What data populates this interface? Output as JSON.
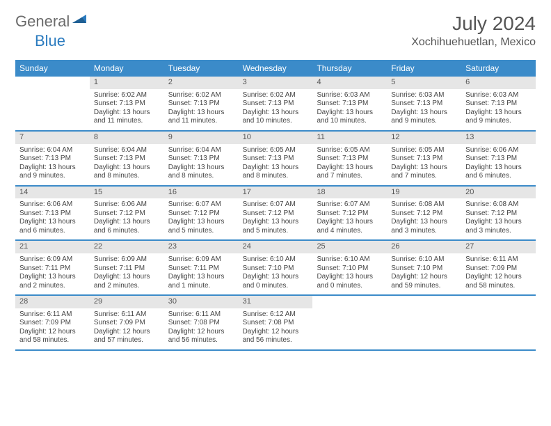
{
  "logo": {
    "general": "General",
    "blue": "Blue"
  },
  "title": "July 2024",
  "location": "Xochihuehuetlan, Mexico",
  "colors": {
    "header_bg": "#3b8bc9",
    "header_text": "#ffffff",
    "daynum_bg": "#e6e6e6",
    "border": "#3b8bc9",
    "text": "#444444",
    "logo_gray": "#6b6b6b",
    "logo_blue": "#2b7bbf"
  },
  "day_names": [
    "Sunday",
    "Monday",
    "Tuesday",
    "Wednesday",
    "Thursday",
    "Friday",
    "Saturday"
  ],
  "weeks": [
    [
      {
        "empty": true
      },
      {
        "num": "1",
        "sunrise": "Sunrise: 6:02 AM",
        "sunset": "Sunset: 7:13 PM",
        "dl1": "Daylight: 13 hours",
        "dl2": "and 11 minutes."
      },
      {
        "num": "2",
        "sunrise": "Sunrise: 6:02 AM",
        "sunset": "Sunset: 7:13 PM",
        "dl1": "Daylight: 13 hours",
        "dl2": "and 11 minutes."
      },
      {
        "num": "3",
        "sunrise": "Sunrise: 6:02 AM",
        "sunset": "Sunset: 7:13 PM",
        "dl1": "Daylight: 13 hours",
        "dl2": "and 10 minutes."
      },
      {
        "num": "4",
        "sunrise": "Sunrise: 6:03 AM",
        "sunset": "Sunset: 7:13 PM",
        "dl1": "Daylight: 13 hours",
        "dl2": "and 10 minutes."
      },
      {
        "num": "5",
        "sunrise": "Sunrise: 6:03 AM",
        "sunset": "Sunset: 7:13 PM",
        "dl1": "Daylight: 13 hours",
        "dl2": "and 9 minutes."
      },
      {
        "num": "6",
        "sunrise": "Sunrise: 6:03 AM",
        "sunset": "Sunset: 7:13 PM",
        "dl1": "Daylight: 13 hours",
        "dl2": "and 9 minutes."
      }
    ],
    [
      {
        "num": "7",
        "sunrise": "Sunrise: 6:04 AM",
        "sunset": "Sunset: 7:13 PM",
        "dl1": "Daylight: 13 hours",
        "dl2": "and 9 minutes."
      },
      {
        "num": "8",
        "sunrise": "Sunrise: 6:04 AM",
        "sunset": "Sunset: 7:13 PM",
        "dl1": "Daylight: 13 hours",
        "dl2": "and 8 minutes."
      },
      {
        "num": "9",
        "sunrise": "Sunrise: 6:04 AM",
        "sunset": "Sunset: 7:13 PM",
        "dl1": "Daylight: 13 hours",
        "dl2": "and 8 minutes."
      },
      {
        "num": "10",
        "sunrise": "Sunrise: 6:05 AM",
        "sunset": "Sunset: 7:13 PM",
        "dl1": "Daylight: 13 hours",
        "dl2": "and 8 minutes."
      },
      {
        "num": "11",
        "sunrise": "Sunrise: 6:05 AM",
        "sunset": "Sunset: 7:13 PM",
        "dl1": "Daylight: 13 hours",
        "dl2": "and 7 minutes."
      },
      {
        "num": "12",
        "sunrise": "Sunrise: 6:05 AM",
        "sunset": "Sunset: 7:13 PM",
        "dl1": "Daylight: 13 hours",
        "dl2": "and 7 minutes."
      },
      {
        "num": "13",
        "sunrise": "Sunrise: 6:06 AM",
        "sunset": "Sunset: 7:13 PM",
        "dl1": "Daylight: 13 hours",
        "dl2": "and 6 minutes."
      }
    ],
    [
      {
        "num": "14",
        "sunrise": "Sunrise: 6:06 AM",
        "sunset": "Sunset: 7:13 PM",
        "dl1": "Daylight: 13 hours",
        "dl2": "and 6 minutes."
      },
      {
        "num": "15",
        "sunrise": "Sunrise: 6:06 AM",
        "sunset": "Sunset: 7:12 PM",
        "dl1": "Daylight: 13 hours",
        "dl2": "and 6 minutes."
      },
      {
        "num": "16",
        "sunrise": "Sunrise: 6:07 AM",
        "sunset": "Sunset: 7:12 PM",
        "dl1": "Daylight: 13 hours",
        "dl2": "and 5 minutes."
      },
      {
        "num": "17",
        "sunrise": "Sunrise: 6:07 AM",
        "sunset": "Sunset: 7:12 PM",
        "dl1": "Daylight: 13 hours",
        "dl2": "and 5 minutes."
      },
      {
        "num": "18",
        "sunrise": "Sunrise: 6:07 AM",
        "sunset": "Sunset: 7:12 PM",
        "dl1": "Daylight: 13 hours",
        "dl2": "and 4 minutes."
      },
      {
        "num": "19",
        "sunrise": "Sunrise: 6:08 AM",
        "sunset": "Sunset: 7:12 PM",
        "dl1": "Daylight: 13 hours",
        "dl2": "and 3 minutes."
      },
      {
        "num": "20",
        "sunrise": "Sunrise: 6:08 AM",
        "sunset": "Sunset: 7:12 PM",
        "dl1": "Daylight: 13 hours",
        "dl2": "and 3 minutes."
      }
    ],
    [
      {
        "num": "21",
        "sunrise": "Sunrise: 6:09 AM",
        "sunset": "Sunset: 7:11 PM",
        "dl1": "Daylight: 13 hours",
        "dl2": "and 2 minutes."
      },
      {
        "num": "22",
        "sunrise": "Sunrise: 6:09 AM",
        "sunset": "Sunset: 7:11 PM",
        "dl1": "Daylight: 13 hours",
        "dl2": "and 2 minutes."
      },
      {
        "num": "23",
        "sunrise": "Sunrise: 6:09 AM",
        "sunset": "Sunset: 7:11 PM",
        "dl1": "Daylight: 13 hours",
        "dl2": "and 1 minute."
      },
      {
        "num": "24",
        "sunrise": "Sunrise: 6:10 AM",
        "sunset": "Sunset: 7:10 PM",
        "dl1": "Daylight: 13 hours",
        "dl2": "and 0 minutes."
      },
      {
        "num": "25",
        "sunrise": "Sunrise: 6:10 AM",
        "sunset": "Sunset: 7:10 PM",
        "dl1": "Daylight: 13 hours",
        "dl2": "and 0 minutes."
      },
      {
        "num": "26",
        "sunrise": "Sunrise: 6:10 AM",
        "sunset": "Sunset: 7:10 PM",
        "dl1": "Daylight: 12 hours",
        "dl2": "and 59 minutes."
      },
      {
        "num": "27",
        "sunrise": "Sunrise: 6:11 AM",
        "sunset": "Sunset: 7:09 PM",
        "dl1": "Daylight: 12 hours",
        "dl2": "and 58 minutes."
      }
    ],
    [
      {
        "num": "28",
        "sunrise": "Sunrise: 6:11 AM",
        "sunset": "Sunset: 7:09 PM",
        "dl1": "Daylight: 12 hours",
        "dl2": "and 58 minutes."
      },
      {
        "num": "29",
        "sunrise": "Sunrise: 6:11 AM",
        "sunset": "Sunset: 7:09 PM",
        "dl1": "Daylight: 12 hours",
        "dl2": "and 57 minutes."
      },
      {
        "num": "30",
        "sunrise": "Sunrise: 6:11 AM",
        "sunset": "Sunset: 7:08 PM",
        "dl1": "Daylight: 12 hours",
        "dl2": "and 56 minutes."
      },
      {
        "num": "31",
        "sunrise": "Sunrise: 6:12 AM",
        "sunset": "Sunset: 7:08 PM",
        "dl1": "Daylight: 12 hours",
        "dl2": "and 56 minutes."
      },
      {
        "empty": true
      },
      {
        "empty": true
      },
      {
        "empty": true
      }
    ]
  ]
}
